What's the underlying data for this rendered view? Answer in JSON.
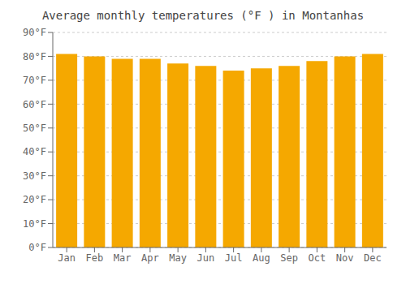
{
  "chart_data": {
    "type": "bar",
    "title": "Average monthly temperatures (°F ) in Montanhas",
    "categories": [
      "Jan",
      "Feb",
      "Mar",
      "Apr",
      "May",
      "Jun",
      "Jul",
      "Aug",
      "Sep",
      "Oct",
      "Nov",
      "Dec"
    ],
    "values": [
      81,
      80,
      79,
      79,
      77,
      76,
      74,
      75,
      76,
      78,
      80,
      81
    ],
    "color": "#F5A800",
    "ylim": [
      0,
      90
    ],
    "yticks": [
      {
        "value": 0,
        "label": "0°F"
      },
      {
        "value": 10,
        "label": "10°F"
      },
      {
        "value": 20,
        "label": "20°F"
      },
      {
        "value": 30,
        "label": "30°F"
      },
      {
        "value": 40,
        "label": "40°F"
      },
      {
        "value": 50,
        "label": "50°F"
      },
      {
        "value": 60,
        "label": "60°F"
      },
      {
        "value": 70,
        "label": "70°F"
      },
      {
        "value": 80,
        "label": "80°F"
      },
      {
        "value": 90,
        "label": "90°F"
      }
    ],
    "grid": true
  }
}
